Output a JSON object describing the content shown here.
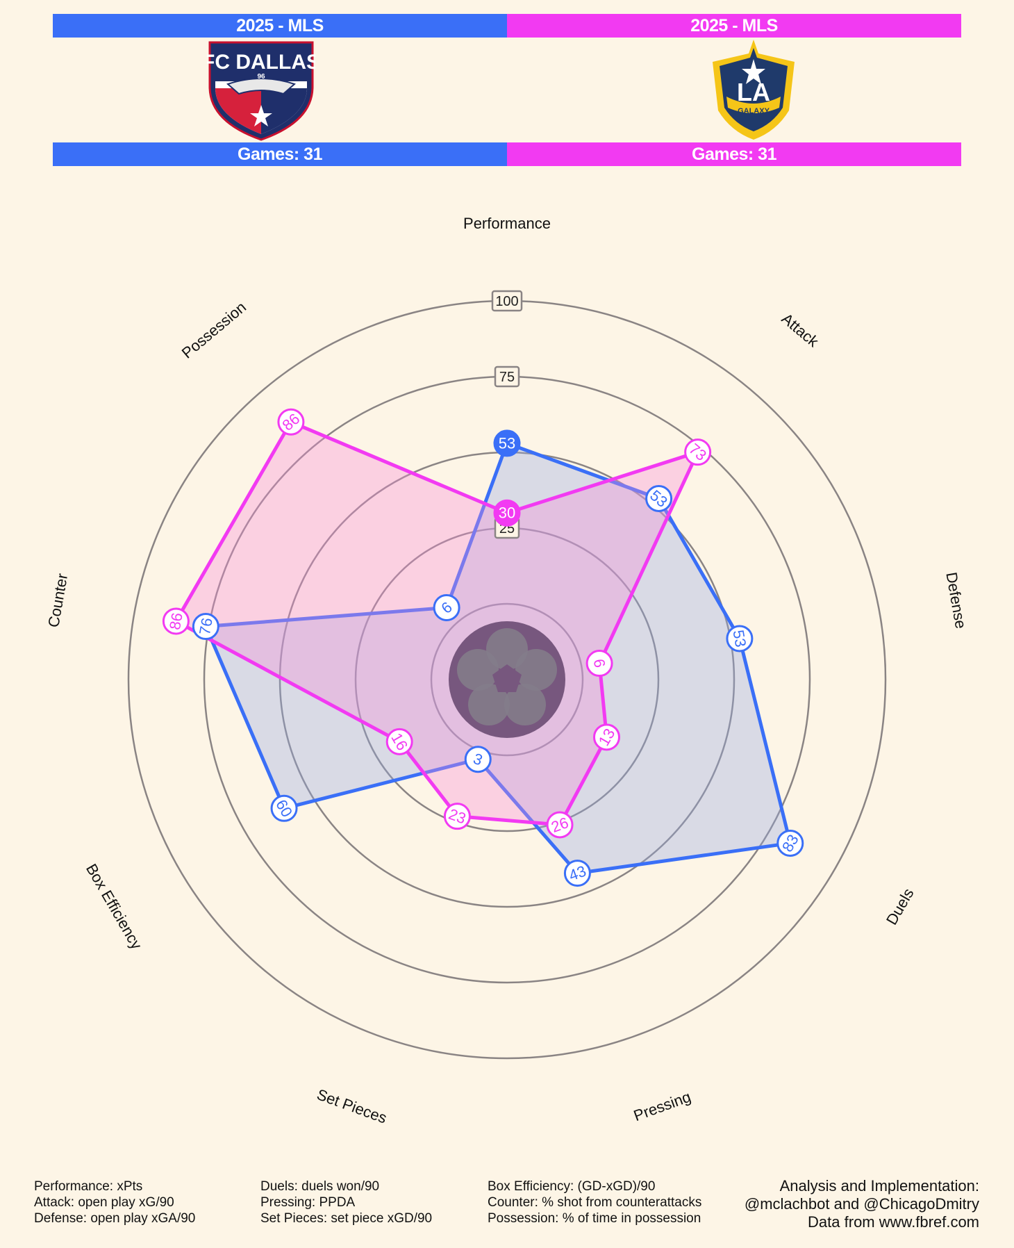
{
  "header": {
    "left": {
      "season_label": "2025 - MLS",
      "games_label": "Games: 31",
      "color": "#3a6ff7",
      "logo_text": "FC DALLAS",
      "logo_sub": "96"
    },
    "right": {
      "season_label": "2025 - MLS",
      "games_label": "Games: 31",
      "color": "#f23af2",
      "logo_text": "LA",
      "logo_sub": "GALAXY"
    }
  },
  "chart_data": {
    "type": "radar",
    "axes": [
      "Performance",
      "Attack",
      "Defense",
      "Duels",
      "Pressing",
      "Set Pieces",
      "Box Efficiency",
      "Counter",
      "Possession"
    ],
    "ring_labels": [
      "100",
      "75",
      "25"
    ],
    "range": [
      0,
      100
    ],
    "series": [
      {
        "values": [
          53,
          53,
          53,
          83,
          43,
          3,
          60,
          76,
          6
        ],
        "color": "#3a6ff7",
        "fill": "rgba(150,170,225,0.35)"
      },
      {
        "values": [
          30,
          73,
          6,
          13,
          26,
          23,
          16,
          86,
          86
        ],
        "color": "#f23af2",
        "fill": "rgba(245,140,215,0.35)"
      }
    ]
  },
  "footer": {
    "col1": [
      "Performance: xPts",
      "Attack: open play xG/90",
      "Defense: open play xGA/90"
    ],
    "col2": [
      "Duels: duels won/90",
      "Pressing: PPDA",
      "Set Pieces: set piece xGD/90"
    ],
    "col3": [
      "Box Efficiency: (GD-xGD)/90",
      "Counter: % shot from counterattacks",
      "Possession: % of time in possession"
    ],
    "credits": [
      "Analysis and Implementation:",
      "@mclachbot and @ChicagoDmitry",
      "Data from www.fbref.com"
    ]
  }
}
